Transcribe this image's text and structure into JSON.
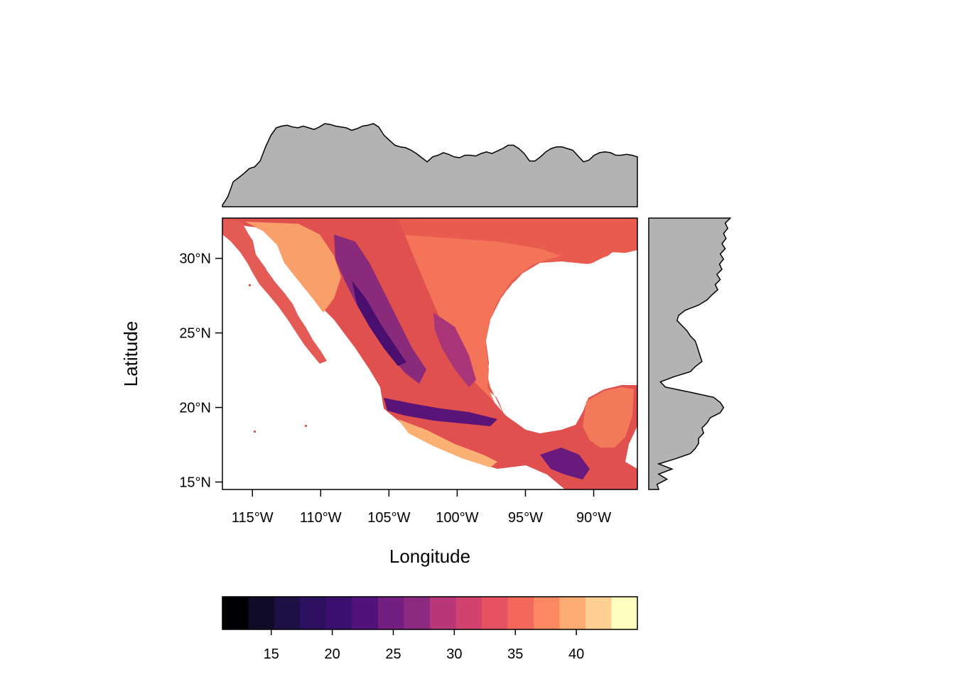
{
  "axes": {
    "xlabel": "Longitude",
    "ylabel": "Latitude",
    "xticks": [
      {
        "value": -115,
        "label": "115°W"
      },
      {
        "value": -110,
        "label": "110°W"
      },
      {
        "value": -105,
        "label": "105°W"
      },
      {
        "value": -100,
        "label": "100°W"
      },
      {
        "value": -95,
        "label": "95°W"
      },
      {
        "value": -90,
        "label": "90°W"
      }
    ],
    "yticks": [
      {
        "value": 15,
        "label": "15°N"
      },
      {
        "value": 20,
        "label": "20°N"
      },
      {
        "value": 25,
        "label": "25°N"
      },
      {
        "value": 30,
        "label": "30°N"
      }
    ],
    "xlim": [
      -117.2,
      -86.8
    ],
    "ylim": [
      14.5,
      32.7
    ]
  },
  "colorbar": {
    "range": [
      11,
      45
    ],
    "ticks": [
      15,
      20,
      25,
      30,
      35,
      40
    ],
    "colors": [
      "#000004",
      "#0f0b28",
      "#1c1044",
      "#2d1160",
      "#3b0f70",
      "#51127c",
      "#721f81",
      "#8c2981",
      "#b73779",
      "#d1426e",
      "#e75263",
      "#f4685c",
      "#fc8961",
      "#fcac72",
      "#fdd092",
      "#fcfdbf"
    ]
  },
  "map": {
    "land_color": "#f07058",
    "water_color": "#ffffff"
  },
  "marginals": {
    "top_mean_profile": [
      0.02,
      0.12,
      0.3,
      0.35,
      0.4,
      0.46,
      0.48,
      0.55,
      0.72,
      0.86,
      0.95,
      0.97,
      0.98,
      0.96,
      0.95,
      0.97,
      0.95,
      0.93,
      0.96,
      1.0,
      0.99,
      0.97,
      0.96,
      0.95,
      0.92,
      0.94,
      0.97,
      0.98,
      1.0,
      0.96,
      0.86,
      0.8,
      0.74,
      0.72,
      0.71,
      0.68,
      0.64,
      0.59,
      0.54,
      0.6,
      0.62,
      0.65,
      0.63,
      0.6,
      0.59,
      0.62,
      0.62,
      0.61,
      0.64,
      0.66,
      0.64,
      0.67,
      0.7,
      0.74,
      0.74,
      0.7,
      0.64,
      0.55,
      0.55,
      0.6,
      0.66,
      0.7,
      0.72,
      0.72,
      0.7,
      0.68,
      0.61,
      0.54,
      0.56,
      0.62,
      0.65,
      0.66,
      0.65,
      0.62,
      0.62,
      0.63,
      0.62,
      0.6
    ],
    "right_mean_profile": [
      0.98,
      0.92,
      0.95,
      0.9,
      0.93,
      0.88,
      0.92,
      0.86,
      0.9,
      0.85,
      0.88,
      0.82,
      0.86,
      0.8,
      0.83,
      0.76,
      0.7,
      0.6,
      0.44,
      0.36,
      0.34,
      0.4,
      0.46,
      0.5,
      0.56,
      0.58,
      0.6,
      0.62,
      0.64,
      0.56,
      0.5,
      0.3,
      0.14,
      0.2,
      0.5,
      0.78,
      0.86,
      0.9,
      0.86,
      0.74,
      0.7,
      0.64,
      0.66,
      0.6,
      0.6,
      0.56,
      0.5,
      0.32,
      0.12,
      0.28,
      0.12,
      0.22,
      0.1,
      0.12
    ]
  }
}
